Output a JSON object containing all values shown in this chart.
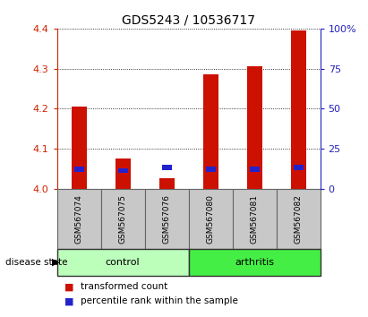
{
  "title": "GDS5243 / 10536717",
  "samples": [
    "GSM567074",
    "GSM567075",
    "GSM567076",
    "GSM567080",
    "GSM567081",
    "GSM567082"
  ],
  "red_values": [
    4.205,
    4.075,
    4.025,
    4.285,
    4.305,
    4.395
  ],
  "blue_values": [
    4.048,
    4.045,
    4.052,
    4.048,
    4.048,
    4.052
  ],
  "ymin": 4.0,
  "ymax": 4.4,
  "yticks": [
    4.0,
    4.1,
    4.2,
    4.3,
    4.4
  ],
  "right_yticks": [
    0,
    25,
    50,
    75,
    100
  ],
  "bar_width": 0.35,
  "left_axis_color": "#cc2200",
  "right_axis_color": "#2222bb",
  "control_color": "#bbffbb",
  "arthritis_color": "#44ee44",
  "sample_bg_color": "#c8c8c8",
  "bar_color_red": "#cc1100",
  "bar_color_blue": "#2222cc",
  "legend_red": "transformed count",
  "legend_blue": "percentile rank within the sample",
  "group_label": "disease state",
  "control_label": "control",
  "arthritis_label": "arthritis"
}
